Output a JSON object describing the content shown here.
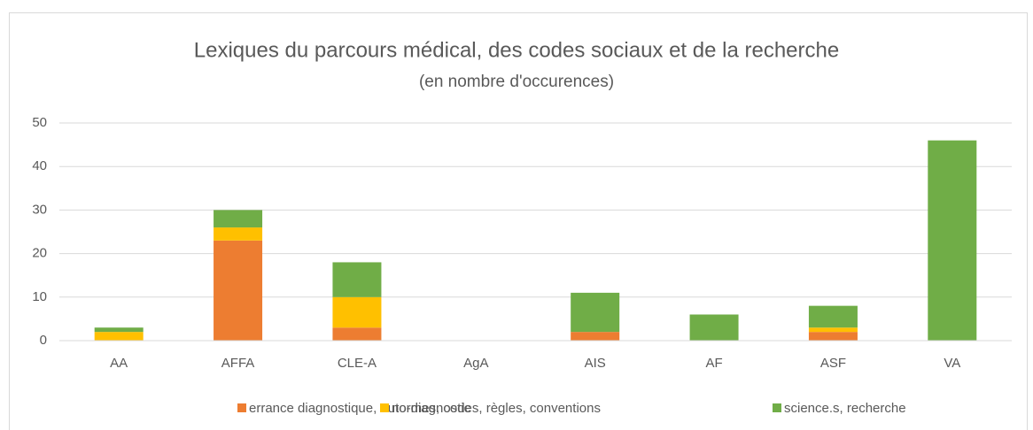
{
  "chart_data": {
    "type": "stacked_bar",
    "title": "Lexiques du parcours médical, des codes sociaux et de la recherche",
    "subtitle": "(en nombre d'occurences)",
    "categories": [
      "AA",
      "AFFA",
      "CLE-A",
      "AgA",
      "AIS",
      "AF",
      "ASF",
      "VA"
    ],
    "series": [
      {
        "name": "errance diagnostique, auto-diagnostic",
        "color": "#ed7d31",
        "values": [
          0,
          23,
          3,
          0,
          2,
          0,
          2,
          0
        ]
      },
      {
        "name": "normes, codes, règles, conventions",
        "color": "#ffc000",
        "values": [
          2,
          3,
          7,
          0,
          0,
          0,
          1,
          0
        ]
      },
      {
        "name": "science.s, recherche",
        "color": "#70ad47",
        "values": [
          1,
          4,
          8,
          0,
          9,
          6,
          5,
          46
        ]
      }
    ],
    "ylim": [
      0,
      50
    ],
    "yticks": [
      0,
      10,
      20,
      30,
      40,
      50
    ],
    "grid": true,
    "legend": "bottom"
  }
}
